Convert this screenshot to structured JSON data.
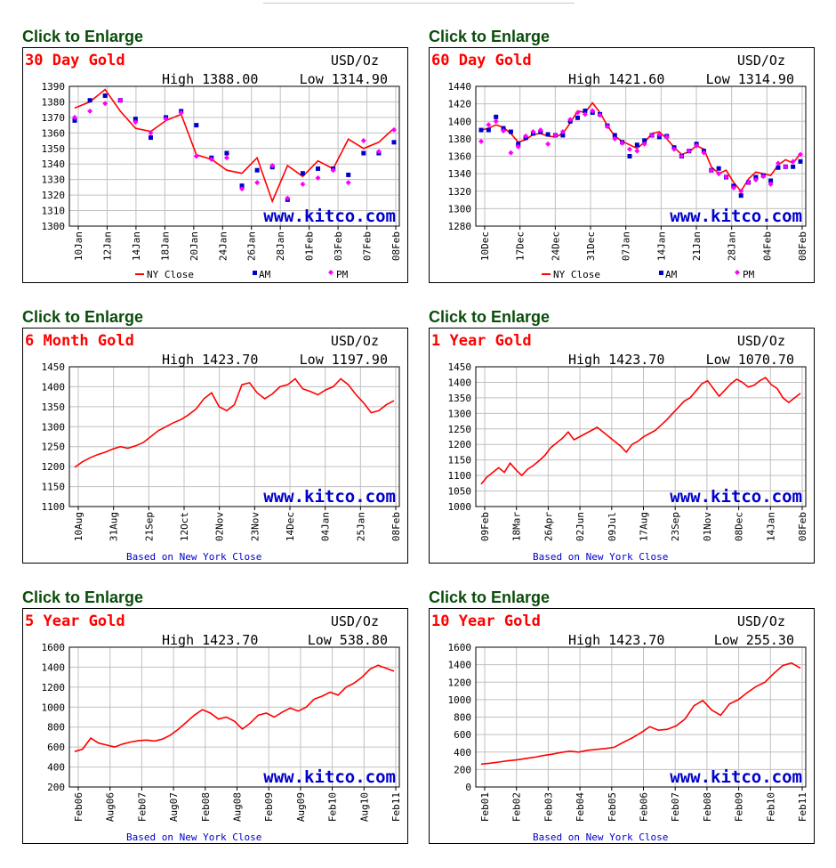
{
  "colors": {
    "line": "#ff0000",
    "am": "#0000cc",
    "pm": "#ff00ff",
    "grid": "#c0c0c0",
    "axis": "#000000",
    "title": "#ff0000",
    "brand": "#0000cc",
    "link": "#0a4d0a"
  },
  "link_label": "Click to Enlarge",
  "chart_data": [
    {
      "type": "line",
      "title": "30 Day Gold",
      "unit": "USD/Oz",
      "high": "High 1388.00",
      "low": "Low 1314.90",
      "watermark": "www.kitco.com",
      "ylim": [
        1300,
        1390
      ],
      "yticks": [
        "1390",
        "1380",
        "1370",
        "1360",
        "1350",
        "1340",
        "1330",
        "1320",
        "1310",
        "1300"
      ],
      "xticks": [
        "10Jan",
        "12Jan",
        "14Jan",
        "18Jan",
        "20Jan",
        "24Jan",
        "26Jan",
        "28Jan",
        "01Feb",
        "03Feb",
        "07Feb",
        "08Feb"
      ],
      "legend": [
        "NY Close",
        "AM",
        "PM"
      ],
      "series": [
        {
          "name": "NY Close",
          "values": [
            1376,
            1380,
            1388,
            1374,
            1363,
            1361,
            1368,
            1372,
            1346,
            1343,
            1336,
            1334,
            1344,
            1316,
            1339,
            1332,
            1342,
            1337,
            1356,
            1350,
            1354,
            1363
          ]
        },
        {
          "name": "AM",
          "values": [
            1368,
            1381,
            1384,
            1381,
            1369,
            1357,
            1370,
            1374,
            1365,
            1344,
            1347,
            1326,
            1336,
            1338,
            1317,
            1334,
            1337,
            1337,
            1333,
            1347,
            1347,
            1354
          ]
        },
        {
          "name": "PM",
          "values": [
            1370,
            1374,
            1379,
            1381,
            1367,
            1360,
            1369,
            1373,
            1345,
            1343,
            1344,
            1324,
            1328,
            1339,
            1318,
            1327,
            1331,
            1336,
            1328,
            1355,
            1348,
            1362
          ]
        }
      ]
    },
    {
      "type": "line",
      "title": "60 Day Gold",
      "unit": "USD/Oz",
      "high": "High 1421.60",
      "low": "Low 1314.90",
      "watermark": "www.kitco.com",
      "ylim": [
        1280,
        1440
      ],
      "yticks": [
        "1440",
        "1420",
        "1400",
        "1380",
        "1360",
        "1340",
        "1320",
        "1300",
        "1280"
      ],
      "xticks": [
        "10Dec",
        "17Dec",
        "24Dec",
        "31Dec",
        "07Jan",
        "14Jan",
        "21Jan",
        "28Jan",
        "04Feb",
        "08Feb"
      ],
      "legend": [
        "NY Close",
        "AM",
        "PM"
      ],
      "series": [
        {
          "name": "NY Close",
          "values": [
            1390,
            1392,
            1396,
            1393,
            1386,
            1376,
            1379,
            1385,
            1386,
            1383,
            1382,
            1386,
            1398,
            1412,
            1410,
            1421,
            1410,
            1395,
            1383,
            1377,
            1373,
            1369,
            1376,
            1386,
            1388,
            1380,
            1370,
            1362,
            1365,
            1372,
            1368,
            1348,
            1340,
            1344,
            1330,
            1320,
            1334,
            1342,
            1340,
            1338,
            1350,
            1356,
            1352,
            1363
          ]
        },
        {
          "name": "AM",
          "values": [
            1390,
            1390,
            1405,
            1392,
            1388,
            1374,
            1381,
            1386,
            1388,
            1385,
            1384,
            1384,
            1400,
            1404,
            1412,
            1410,
            1408,
            1395,
            1384,
            1376,
            1360,
            1373,
            1378,
            1384,
            1382,
            1383,
            1370,
            1360,
            1366,
            1374,
            1366,
            1344,
            1346,
            1336,
            1326,
            1315,
            1330,
            1336,
            1338,
            1332,
            1347,
            1348,
            1348,
            1354
          ]
        },
        {
          "name": "PM",
          "values": [
            1377,
            1396,
            1400,
            1389,
            1364,
            1371,
            1383,
            1388,
            1390,
            1374,
            1384,
            1388,
            1402,
            1410,
            1408,
            1412,
            1407,
            1394,
            1380,
            1375,
            1368,
            1366,
            1374,
            1384,
            1385,
            1382,
            1368,
            1360,
            1366,
            1372,
            1364,
            1344,
            1340,
            1336,
            1324,
            1320,
            1330,
            1333,
            1337,
            1328,
            1352,
            1348,
            1354,
            1362
          ]
        }
      ]
    },
    {
      "type": "line",
      "title": "6 Month Gold",
      "unit": "USD/Oz",
      "high": "High 1423.70",
      "low": "Low 1197.90",
      "watermark": "www.kitco.com",
      "footer": "Based on New York Close",
      "ylim": [
        1100,
        1450
      ],
      "yticks": [
        "1450",
        "1400",
        "1350",
        "1300",
        "1250",
        "1200",
        "1150",
        "1100"
      ],
      "xticks": [
        "10Aug",
        "31Aug",
        "21Sep",
        "12Oct",
        "02Nov",
        "23Nov",
        "14Dec",
        "04Jan",
        "25Jan",
        "08Feb"
      ],
      "series": [
        {
          "name": "NY Close",
          "values": [
            1198,
            1212,
            1222,
            1230,
            1236,
            1244,
            1250,
            1246,
            1252,
            1260,
            1275,
            1290,
            1300,
            1310,
            1318,
            1330,
            1345,
            1370,
            1385,
            1350,
            1340,
            1355,
            1405,
            1410,
            1385,
            1370,
            1382,
            1400,
            1405,
            1420,
            1395,
            1388,
            1380,
            1392,
            1400,
            1420,
            1405,
            1380,
            1360,
            1335,
            1340,
            1355,
            1365
          ]
        }
      ]
    },
    {
      "type": "line",
      "title": "1 Year Gold",
      "unit": "USD/Oz",
      "high": "High 1423.70",
      "low": "Low 1070.70",
      "watermark": "www.kitco.com",
      "footer": "Based on New York Close",
      "ylim": [
        1000,
        1450
      ],
      "yticks": [
        "1450",
        "1400",
        "1350",
        "1300",
        "1250",
        "1200",
        "1150",
        "1100",
        "1050",
        "1000"
      ],
      "xticks": [
        "09Feb",
        "18Mar",
        "26Apr",
        "02Jun",
        "09Jul",
        "17Aug",
        "23Sep",
        "01Nov",
        "08Dec",
        "14Jan",
        "08Feb"
      ],
      "series": [
        {
          "name": "NY Close",
          "values": [
            1072,
            1095,
            1110,
            1125,
            1110,
            1140,
            1118,
            1100,
            1120,
            1132,
            1148,
            1165,
            1190,
            1205,
            1220,
            1240,
            1215,
            1225,
            1235,
            1245,
            1255,
            1240,
            1225,
            1210,
            1195,
            1175,
            1200,
            1210,
            1225,
            1235,
            1245,
            1262,
            1280,
            1300,
            1320,
            1340,
            1350,
            1372,
            1395,
            1405,
            1380,
            1355,
            1375,
            1395,
            1410,
            1400,
            1385,
            1390,
            1405,
            1415,
            1392,
            1380,
            1350,
            1335,
            1350,
            1365
          ]
        }
      ]
    },
    {
      "type": "line",
      "title": "5 Year Gold",
      "unit": "USD/Oz",
      "high": "High 1423.70",
      "low": "Low 538.80",
      "watermark": "www.kitco.com",
      "footer": "Based on New York Close",
      "ylim": [
        200,
        1600
      ],
      "yticks": [
        "1600",
        "1400",
        "1200",
        "1000",
        "800",
        "600",
        "400",
        "200"
      ],
      "xticks": [
        "Feb06",
        "Aug06",
        "Feb07",
        "Aug07",
        "Feb08",
        "Aug08",
        "Feb09",
        "Aug09",
        "Feb10",
        "Aug10",
        "Feb11"
      ],
      "series": [
        {
          "name": "NY Close",
          "values": [
            555,
            580,
            690,
            640,
            620,
            600,
            630,
            650,
            665,
            670,
            660,
            680,
            720,
            780,
            850,
            920,
            975,
            940,
            880,
            900,
            860,
            780,
            840,
            920,
            940,
            900,
            950,
            990,
            960,
            1000,
            1080,
            1110,
            1150,
            1120,
            1200,
            1240,
            1300,
            1380,
            1420,
            1390,
            1360
          ]
        }
      ]
    },
    {
      "type": "line",
      "title": "10 Year Gold",
      "unit": "USD/Oz",
      "high": "High 1423.70",
      "low": "Low 255.30",
      "watermark": "www.kitco.com",
      "footer": "Based on New York Close",
      "ylim": [
        0,
        1600
      ],
      "yticks": [
        "1600",
        "1400",
        "1200",
        "1000",
        "800",
        "600",
        "400",
        "200",
        "0"
      ],
      "xticks": [
        "Feb01",
        "Feb02",
        "Feb03",
        "Feb04",
        "Feb05",
        "Feb06",
        "Feb07",
        "Feb08",
        "Feb09",
        "Feb10",
        "Feb11"
      ],
      "series": [
        {
          "name": "NY Close",
          "values": [
            262,
            272,
            285,
            300,
            310,
            325,
            340,
            360,
            375,
            395,
            410,
            400,
            420,
            430,
            440,
            455,
            510,
            560,
            620,
            690,
            650,
            660,
            700,
            780,
            930,
            990,
            880,
            820,
            950,
            1000,
            1080,
            1150,
            1200,
            1300,
            1390,
            1420,
            1360
          ]
        }
      ]
    }
  ]
}
